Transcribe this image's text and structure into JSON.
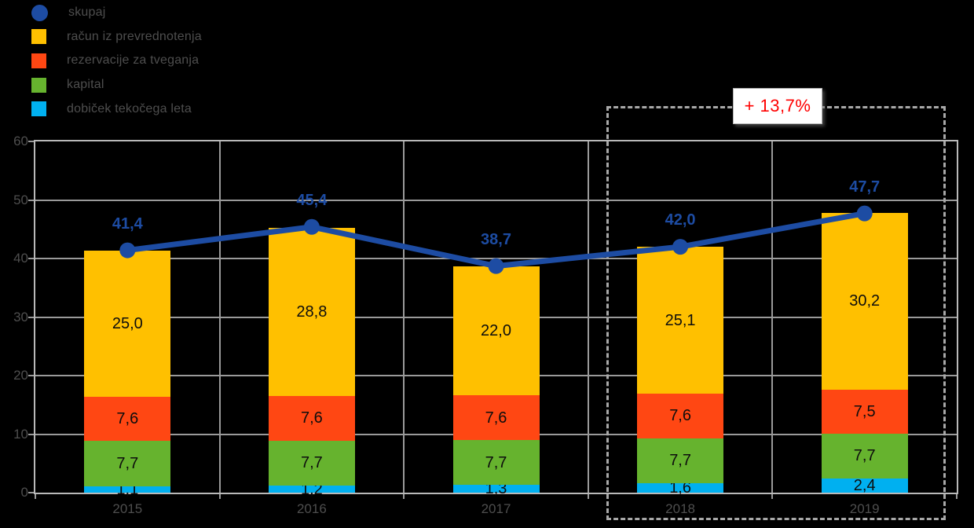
{
  "legend": {
    "items": [
      {
        "label": "skupaj",
        "marker": "circle",
        "color": "#1d4ca3"
      },
      {
        "label": "račun iz prevrednotenja",
        "marker": "square",
        "color": "#ffc000"
      },
      {
        "label": "rezervacije za tveganja",
        "marker": "square",
        "color": "#ff4713"
      },
      {
        "label": "kapital",
        "marker": "square",
        "color": "#66b32e"
      },
      {
        "label": "dobiček tekočega leta",
        "marker": "square",
        "color": "#00b0f0"
      }
    ]
  },
  "annotation": {
    "text": "+ 13,7%",
    "text_color": "#ff0000",
    "box_background": "#ffffff",
    "highlighted_categories": [
      "2018",
      "2019"
    ]
  },
  "chart_data": {
    "type": "bar",
    "subtype": "stacked-columns-with-total-line",
    "title": "",
    "xlabel": "",
    "ylabel": "",
    "categories": [
      "2015",
      "2016",
      "2017",
      "2018",
      "2019"
    ],
    "series": [
      {
        "name": "dobiček tekočega leta",
        "color": "#00b0f0",
        "values": [
          1.1,
          1.2,
          1.3,
          1.6,
          2.4
        ],
        "labels": [
          "1,1",
          "1,2",
          "1,3",
          "1,6",
          "2,4"
        ]
      },
      {
        "name": "kapital",
        "color": "#66b32e",
        "values": [
          7.7,
          7.7,
          7.7,
          7.7,
          7.7
        ],
        "labels": [
          "7,7",
          "7,7",
          "7,7",
          "7,7",
          "7,7"
        ]
      },
      {
        "name": "rezervacije za tveganja",
        "color": "#ff4713",
        "values": [
          7.6,
          7.6,
          7.6,
          7.6,
          7.5
        ],
        "labels": [
          "7,6",
          "7,6",
          "7,6",
          "7,6",
          "7,5"
        ]
      },
      {
        "name": "račun iz prevrednotenja",
        "color": "#ffc000",
        "values": [
          25.0,
          28.8,
          22.0,
          25.1,
          30.2
        ],
        "labels": [
          "25,0",
          "28,8",
          "22,0",
          "25,1",
          "30,2"
        ]
      }
    ],
    "line_series": {
      "name": "skupaj",
      "color": "#1d4ca3",
      "values": [
        41.4,
        45.4,
        38.7,
        42.0,
        47.7
      ],
      "labels": [
        "41,4",
        "45,4",
        "38,7",
        "42,0",
        "47,7"
      ]
    },
    "ylim": [
      0,
      60
    ],
    "ytick_labels": [
      "0",
      "10",
      "20",
      "30",
      "40",
      "50",
      "60"
    ],
    "grid": true,
    "legend_position": "top-left",
    "colors": {
      "background": "#000000",
      "gridline": "#9a9a9a",
      "axis_text": "#4e4e4e",
      "bar_value_text": "#0d0d0d"
    }
  }
}
